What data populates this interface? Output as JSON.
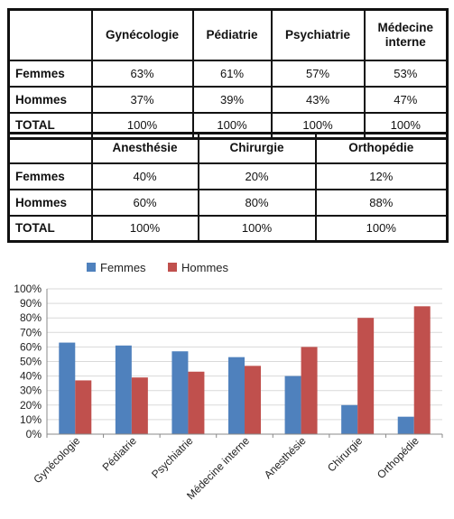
{
  "table1": {
    "headers": [
      "",
      "Gynécologie",
      "Pédiatrie",
      "Psychiatrie",
      "Médecine interne"
    ],
    "rows": [
      {
        "label": "Femmes",
        "values": [
          "63%",
          "61%",
          "57%",
          "53%"
        ]
      },
      {
        "label": "Hommes",
        "values": [
          "37%",
          "39%",
          "43%",
          "47%"
        ]
      },
      {
        "label": "TOTAL",
        "values": [
          "100%",
          "100%",
          "100%",
          "100%"
        ]
      }
    ]
  },
  "table2": {
    "headers": [
      "",
      "Anesthésie",
      "Chirurgie",
      "Orthopédie"
    ],
    "rows": [
      {
        "label": "Femmes",
        "values": [
          "40%",
          "20%",
          "12%"
        ]
      },
      {
        "label": "Hommes",
        "values": [
          "60%",
          "80%",
          "88%"
        ]
      },
      {
        "label": "TOTAL",
        "values": [
          "100%",
          "100%",
          "100%"
        ]
      }
    ]
  },
  "chart_data": {
    "type": "bar",
    "categories": [
      "Gynécologie",
      "Pédiatrie",
      "Psychiatrie",
      "Médecine interne",
      "Anesthésie",
      "Chirurgie",
      "Orthopédie"
    ],
    "series": [
      {
        "name": "Femmes",
        "values": [
          63,
          61,
          57,
          53,
          40,
          20,
          12
        ],
        "color": "#4f81bd"
      },
      {
        "name": "Hommes",
        "values": [
          37,
          39,
          43,
          47,
          60,
          80,
          88
        ],
        "color": "#c0504d"
      }
    ],
    "y_ticks": [
      "0%",
      "10%",
      "20%",
      "30%",
      "40%",
      "50%",
      "60%",
      "70%",
      "80%",
      "90%",
      "100%"
    ],
    "ylim": [
      0,
      100
    ],
    "grid": true,
    "legend": "top-left",
    "title": "",
    "xlabel": "",
    "ylabel": ""
  }
}
